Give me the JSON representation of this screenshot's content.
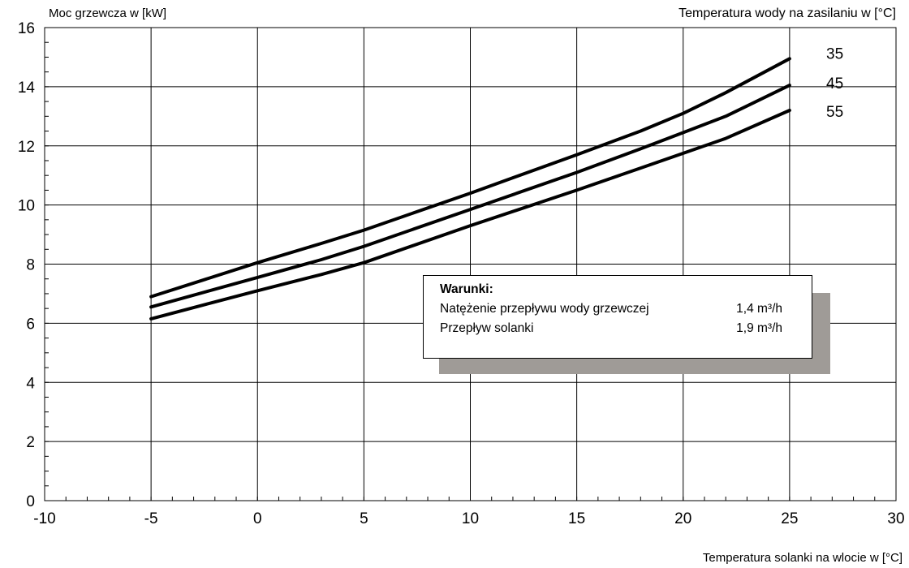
{
  "chart_data": {
    "type": "line",
    "ylabel": "Moc grzewcza w [kW]",
    "xlabel": "Temperatura solanki na wlocie w [°C]",
    "legend_title": "Temperatura wody na zasilaniu w [°C]",
    "xlim": [
      -10,
      30
    ],
    "ylim": [
      0,
      16
    ],
    "x_ticks": [
      -10,
      -5,
      0,
      5,
      10,
      15,
      20,
      25,
      30
    ],
    "y_ticks": [
      0,
      2,
      4,
      6,
      8,
      10,
      12,
      14,
      16
    ],
    "grid": true,
    "series": [
      {
        "name": "35",
        "x": [
          -5,
          0,
          3,
          5,
          10,
          15,
          18,
          20,
          22,
          25
        ],
        "y": [
          6.9,
          8.05,
          8.7,
          9.15,
          10.4,
          11.7,
          12.5,
          13.1,
          13.8,
          14.95
        ]
      },
      {
        "name": "45",
        "x": [
          -5,
          0,
          3,
          5,
          10,
          15,
          18,
          20,
          22,
          25
        ],
        "y": [
          6.55,
          7.55,
          8.15,
          8.6,
          9.85,
          11.1,
          11.9,
          12.45,
          13.0,
          14.05
        ]
      },
      {
        "name": "55",
        "x": [
          -5,
          0,
          3,
          5,
          10,
          15,
          18,
          20,
          22,
          25
        ],
        "y": [
          6.15,
          7.1,
          7.65,
          8.05,
          9.3,
          10.5,
          11.25,
          11.75,
          12.25,
          13.2
        ]
      }
    ]
  },
  "info_box": {
    "title": "Warunki:",
    "rows": [
      {
        "label": "Natężenie przepływu wody grzewczej",
        "value": "1,4 m³/h"
      },
      {
        "label": "Przepływ solanki",
        "value": "1,9 m³/h"
      }
    ]
  }
}
